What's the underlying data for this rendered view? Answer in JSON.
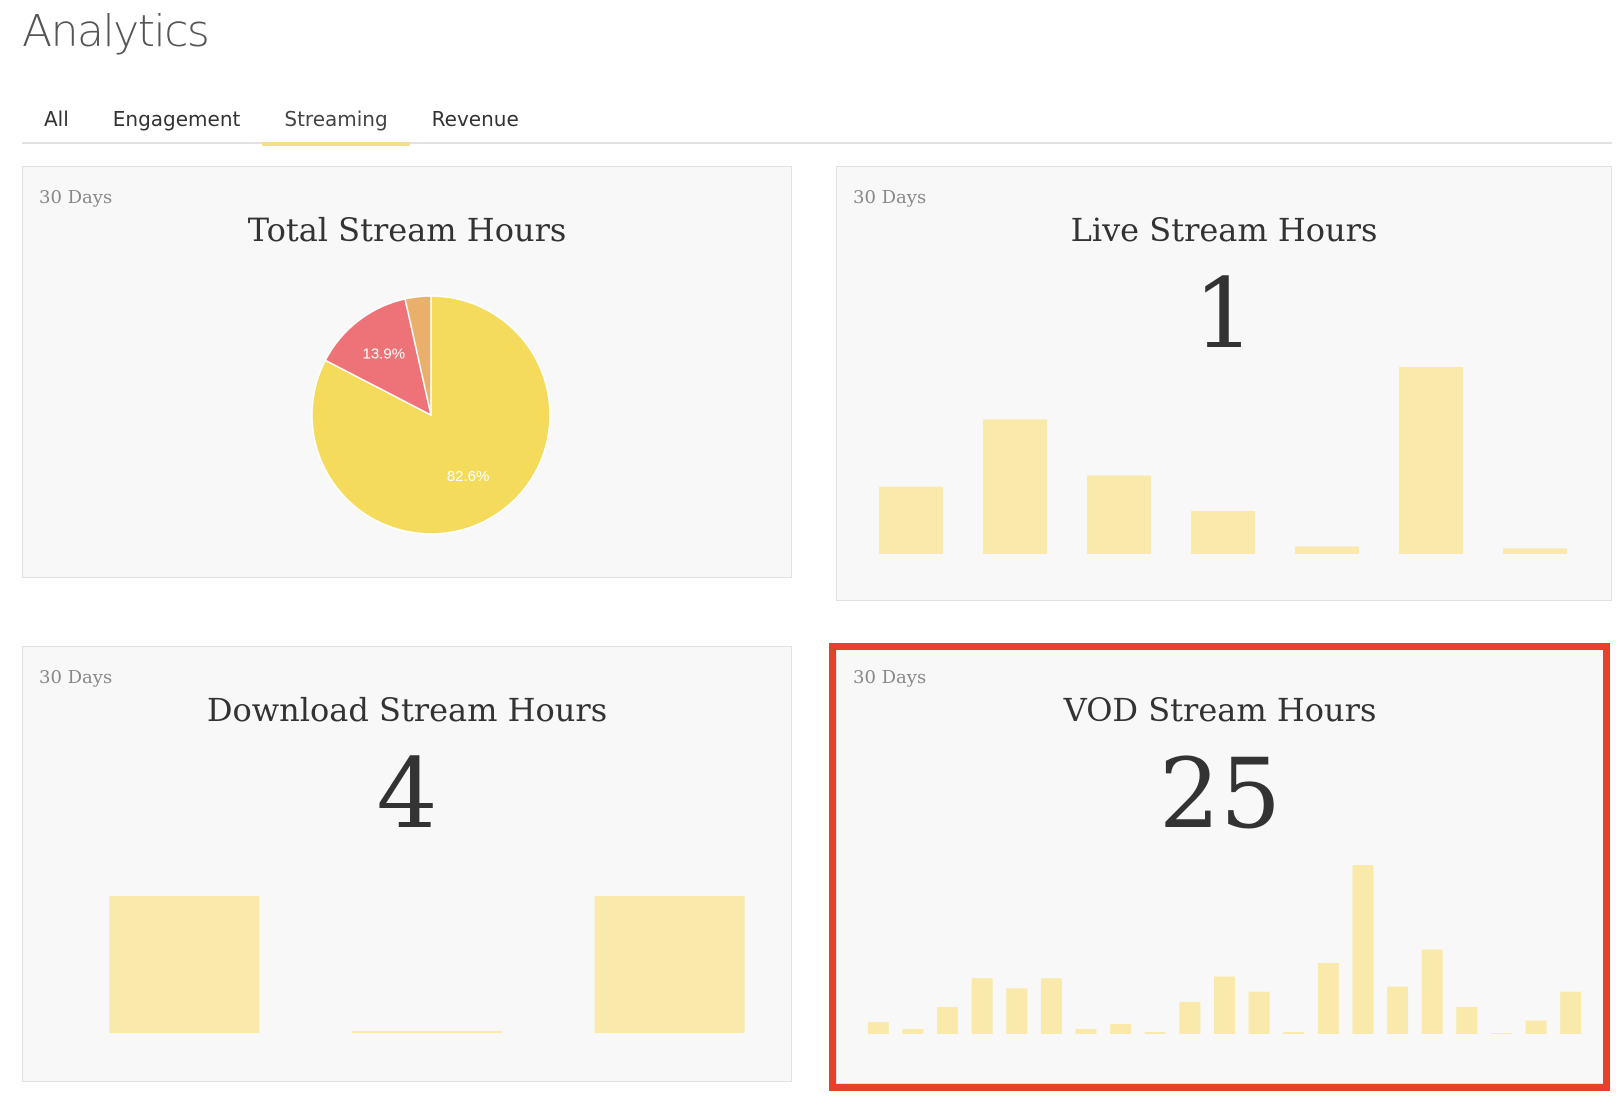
{
  "page": {
    "title": "Analytics"
  },
  "tabs": [
    {
      "label": "All",
      "active": false
    },
    {
      "label": "Engagement",
      "active": false
    },
    {
      "label": "Streaming",
      "active": true
    },
    {
      "label": "Revenue",
      "active": false
    }
  ],
  "colors": {
    "bar": "#f9e9ab",
    "pie_yellow": "#f5db5c",
    "pie_red": "#ee7378",
    "pie_orange": "#e8b06a",
    "highlight": "#e8412b",
    "tab_underline": "#f2e08a"
  },
  "cards": {
    "total": {
      "range": "30 Days",
      "title": "Total Stream Hours",
      "pie": [
        {
          "value": 82.6,
          "label": "82.6%",
          "color": "#f5db5c"
        },
        {
          "value": 13.9,
          "label": "13.9%",
          "color": "#ee7378"
        },
        {
          "value": 3.5,
          "label": "",
          "color": "#e8b06a"
        }
      ]
    },
    "live": {
      "range": "30 Days",
      "title": "Live Stream Hours",
      "value": "1",
      "bars": [
        0.36,
        0.72,
        0.42,
        0.23,
        0.04,
        1.0,
        0.03
      ]
    },
    "download": {
      "range": "30 Days",
      "title": "Download Stream Hours",
      "value": "4",
      "bars": [
        1.0,
        0.01,
        1.0
      ]
    },
    "vod": {
      "range": "30 Days",
      "title": "VOD Stream Hours",
      "value": "25",
      "highlighted": true,
      "bars": [
        0.07,
        0.03,
        0.16,
        0.33,
        0.27,
        0.33,
        0.03,
        0.06,
        0.01,
        0.19,
        0.34,
        0.25,
        0.01,
        0.42,
        1.0,
        0.28,
        0.5,
        0.16,
        0.0,
        0.08,
        0.25
      ]
    }
  }
}
